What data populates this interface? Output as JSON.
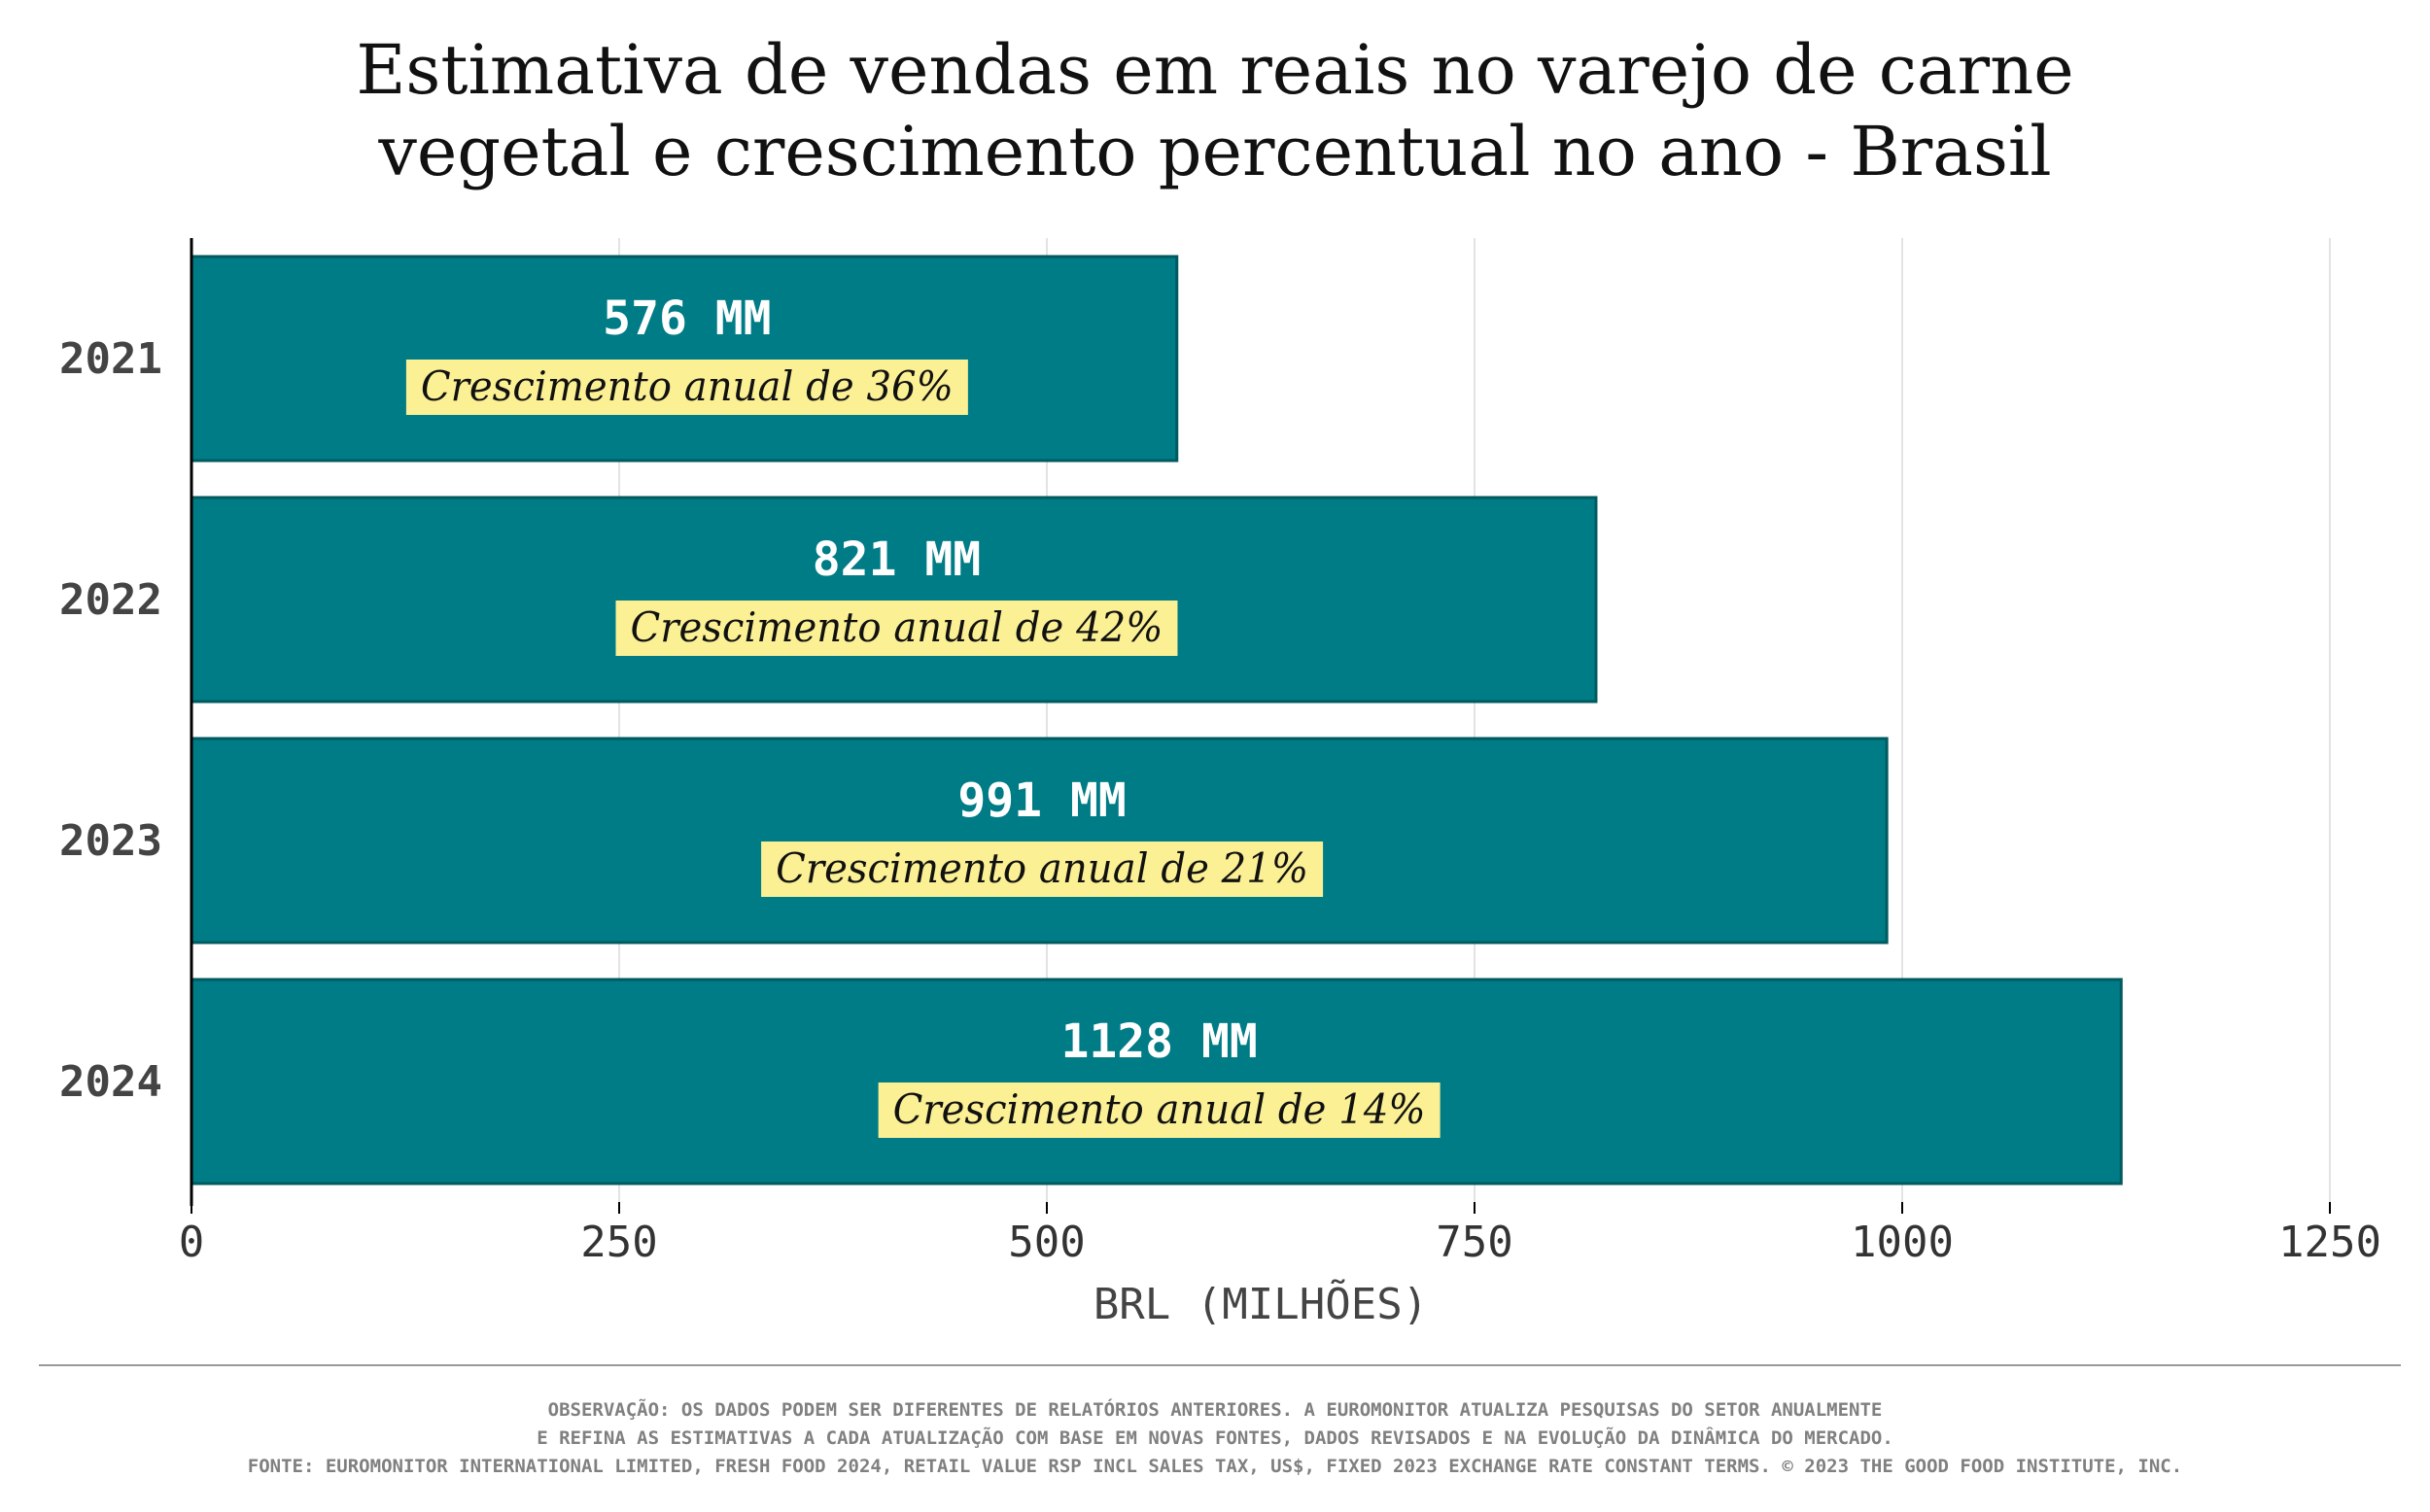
{
  "colors": {
    "bar_fill": "#007c86",
    "bar_stroke": "#015a60",
    "label_bg": "#fbf094",
    "grid": "#e3e3e3",
    "axis": "#000000"
  },
  "chart_data": {
    "type": "bar",
    "orientation": "horizontal",
    "title_lines": [
      "Estimativa de vendas em reais no varejo de carne",
      "vegetal e crescimento percentual no ano - Brasil"
    ],
    "categories": [
      "2021",
      "2022",
      "2023",
      "2024"
    ],
    "values": [
      576,
      821,
      991,
      1128
    ],
    "value_labels": [
      "576 MM",
      "821 MM",
      "991 MM",
      "1128 MM"
    ],
    "growth_labels": [
      "Crescimento anual de 36%",
      "Crescimento anual de 42%",
      "Crescimento anual de 21%",
      "Crescimento anual de 14%"
    ],
    "xlabel": "BRL (MILHÕES)",
    "ylabel": "",
    "xlim": [
      0,
      1250
    ],
    "xticks": [
      0,
      250,
      500,
      750,
      1000,
      1250
    ],
    "xtick_labels": [
      "0",
      "250",
      "500",
      "750",
      "1000",
      "1250"
    ],
    "grid": "vertical"
  },
  "footer": {
    "note_line1": "OBSERVAÇÃO: OS DADOS PODEM SER DIFERENTES DE RELATÓRIOS ANTERIORES. A EUROMONITOR ATUALIZA PESQUISAS DO SETOR ANUALMENTE",
    "note_line2": "E REFINA AS ESTIMATIVAS A CADA ATUALIZAÇÃO COM BASE EM NOVAS FONTES, DADOS REVISADOS E NA EVOLUÇÃO DA DINÂMICA DO MERCADO.",
    "source": "FONTE: EUROMONITOR INTERNATIONAL LIMITED, FRESH FOOD 2024, RETAIL VALUE RSP INCL SALES TAX, US$, FIXED 2023 EXCHANGE RATE CONSTANT TERMS. © 2023 THE GOOD FOOD INSTITUTE, INC."
  }
}
